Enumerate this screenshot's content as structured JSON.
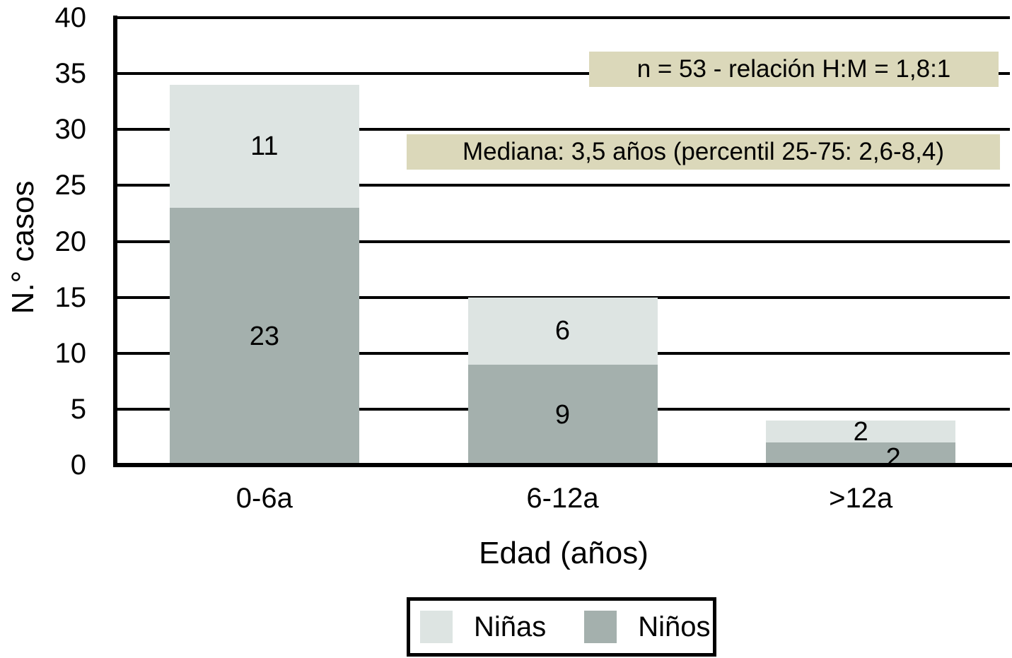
{
  "chart_data": {
    "type": "bar",
    "stacked": true,
    "title": "",
    "xlabel": "Edad (años)",
    "ylabel": "N.° casos",
    "categories": [
      "0-6a",
      "6-12a",
      ">12a"
    ],
    "series": [
      {
        "name": "Niños",
        "color": "#a4b0ad",
        "values": [
          23,
          9,
          2
        ]
      },
      {
        "name": "Niñas",
        "color": "#dde4e2",
        "values": [
          11,
          6,
          2
        ]
      }
    ],
    "stack_order": "series listed bottom-to-top",
    "totals": [
      34,
      15,
      4
    ],
    "n_total": 53,
    "ylim": [
      0,
      40
    ],
    "yticks": [
      0,
      5,
      10,
      15,
      20,
      25,
      30,
      35,
      40
    ],
    "grid": true,
    "grid_color": "#000000",
    "legend_position": "bottom",
    "annotations": [
      {
        "text": "n = 53 - relación H:M = 1,8:1",
        "background": "#dbd8ba"
      },
      {
        "text": "Mediana: 3,5 años (percentil 25-75: 2,6-8,4)",
        "background": "#dbd8ba"
      }
    ]
  },
  "legend": {
    "items": [
      {
        "label": "Niñas",
        "color": "#dde4e2"
      },
      {
        "label": "Niños",
        "color": "#a4b0ad"
      }
    ]
  }
}
